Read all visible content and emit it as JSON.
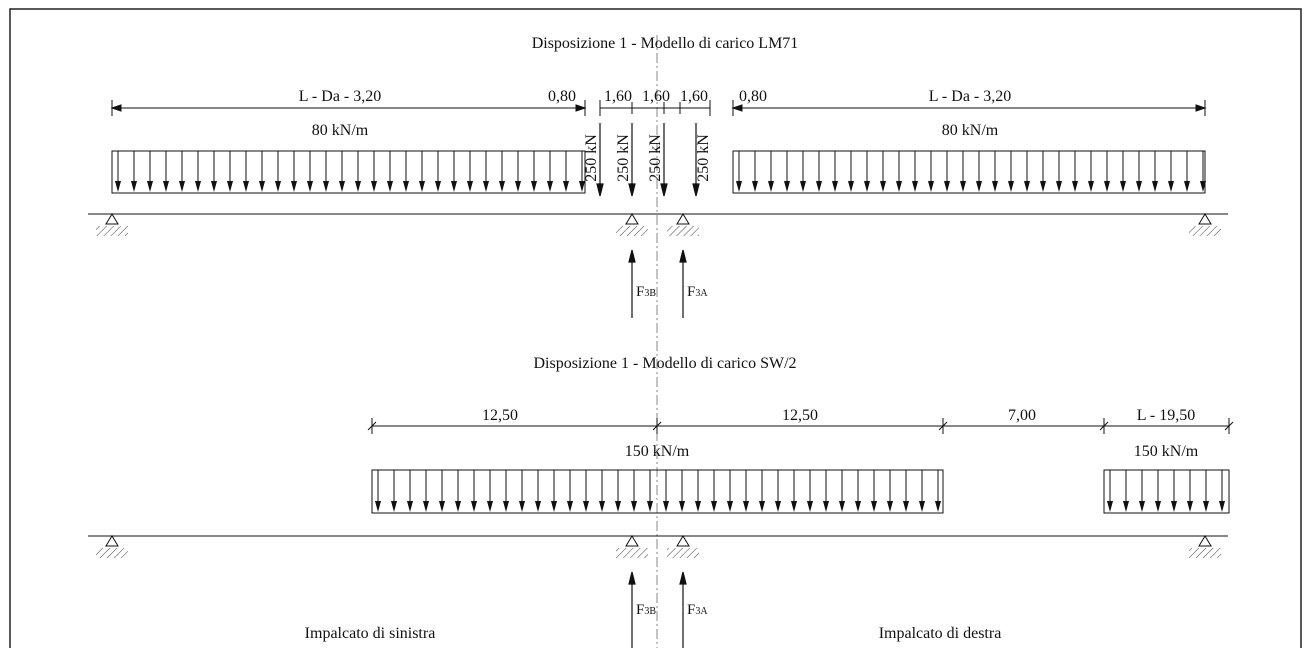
{
  "lm71": {
    "title": "Disposizione 1 - Modello di carico LM71",
    "dim_left": "L - Da - 3,20",
    "dim_left_gap": "0,80",
    "dim_axle_1": "1,60",
    "dim_axle_2": "1,60",
    "dim_axle_3": "1,60",
    "dim_right_gap": "0,80",
    "dim_right": "L - Da - 3,20",
    "load_left": "80 kN/m",
    "load_right": "80 kN/m",
    "axle_load_1": "250 kN",
    "axle_load_2": "250 kN",
    "axle_load_3": "250 kN",
    "axle_load_4": "250 kN",
    "reaction_left_main": "F",
    "reaction_left_sub": "3B",
    "reaction_right_main": "F",
    "reaction_right_sub": "3A"
  },
  "sw2": {
    "title": "Disposizione 1 - Modello di carico SW/2",
    "dim_1": "12,50",
    "dim_2": "12,50",
    "dim_3": "7,00",
    "dim_4": "L - 19,50",
    "load_main": "150 kN/m",
    "load_right": "150 kN/m",
    "reaction_left_main": "F",
    "reaction_left_sub": "3B",
    "reaction_right_main": "F",
    "reaction_right_sub": "3A"
  },
  "labels": {
    "deck_left": "Impalcato di sinistra",
    "deck_right": "Impalcato di destra"
  }
}
